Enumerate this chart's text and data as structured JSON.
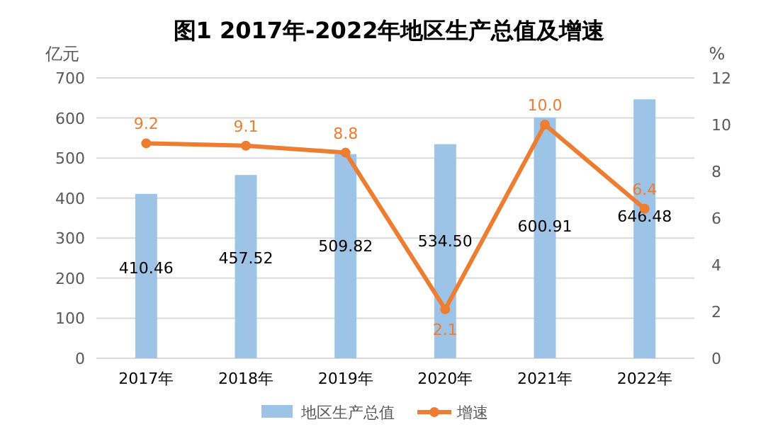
{
  "chart_data": {
    "type": "bar",
    "title": "图1 2017年-2022年地区生产总值及增速",
    "ylabel": "亿元",
    "y2label": "%",
    "categories": [
      "2017年",
      "2018年",
      "2019年",
      "2020年",
      "2021年",
      "2022年"
    ],
    "series": [
      {
        "name": "地区生产总值",
        "color": "#9dc3e6",
        "values": [
          410.46,
          457.52,
          509.82,
          534.5,
          600.91,
          646.48
        ],
        "value_labels": [
          "410.46",
          "457.52",
          "509.82",
          "534.50",
          "600.91",
          "646.48"
        ]
      },
      {
        "name": "增速",
        "type": "line",
        "axis": "y2",
        "color": "#ed7d31",
        "values": [
          9.2,
          9.1,
          8.8,
          2.1,
          10.0,
          6.4
        ],
        "value_labels": [
          "9.2",
          "9.1",
          "8.8",
          "2.1",
          "10.0",
          "6.4"
        ]
      }
    ],
    "ylim": [
      0,
      700
    ],
    "yticks": [
      0,
      100,
      200,
      300,
      400,
      500,
      600,
      700
    ],
    "y2lim": [
      0,
      12
    ],
    "y2ticks": [
      0,
      2,
      4,
      6,
      8,
      10,
      12
    ],
    "grid": "y",
    "legend": "bottom",
    "marker": "circle"
  }
}
